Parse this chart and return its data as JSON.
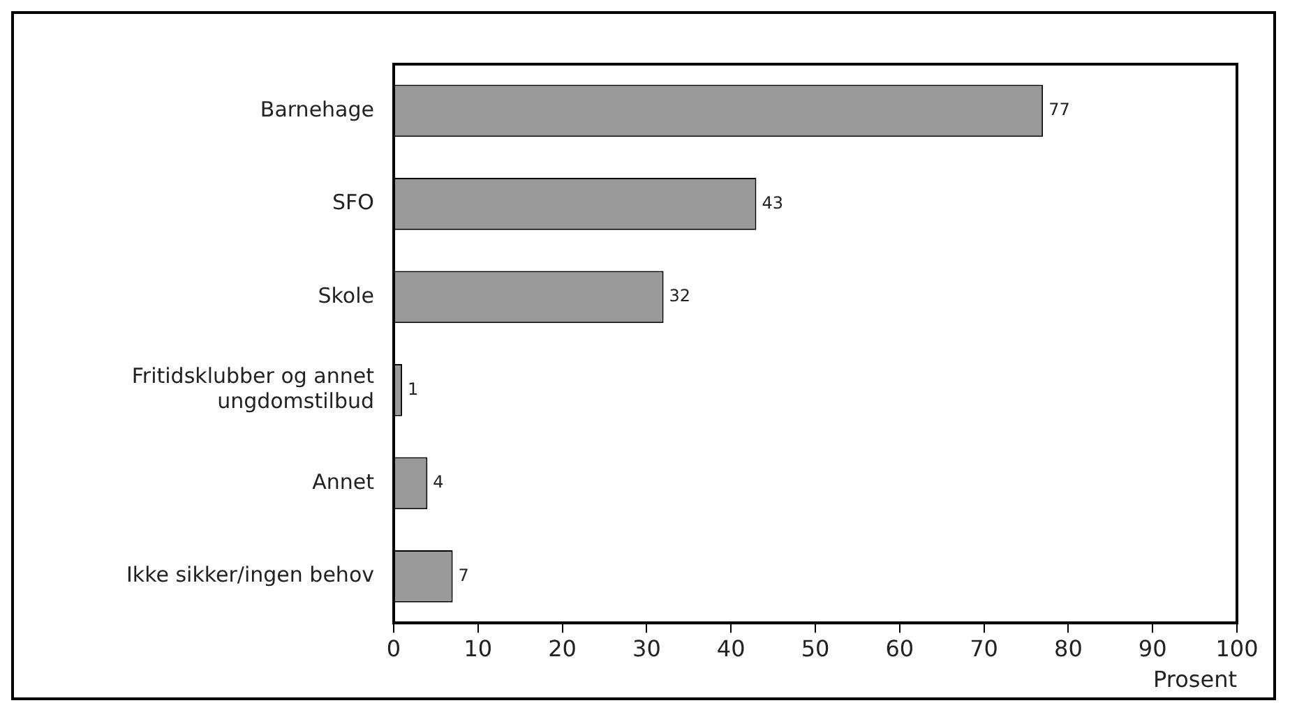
{
  "chart_data": {
    "type": "bar",
    "orientation": "horizontal",
    "xlabel": "Prosent",
    "categories": [
      "Barnehage",
      "SFO",
      "Skole",
      "Fritidsklubber og annet ungdomstilbud",
      "Annet",
      "Ikke sikker/ingen behov"
    ],
    "values": [
      77,
      43,
      32,
      1,
      4,
      7
    ],
    "color": "#999999",
    "xlim": [
      0,
      100
    ],
    "xticks": [
      0,
      10,
      20,
      30,
      40,
      50,
      60,
      70,
      80,
      90,
      100
    ],
    "grid": false,
    "legend": false,
    "data_labels": true
  }
}
